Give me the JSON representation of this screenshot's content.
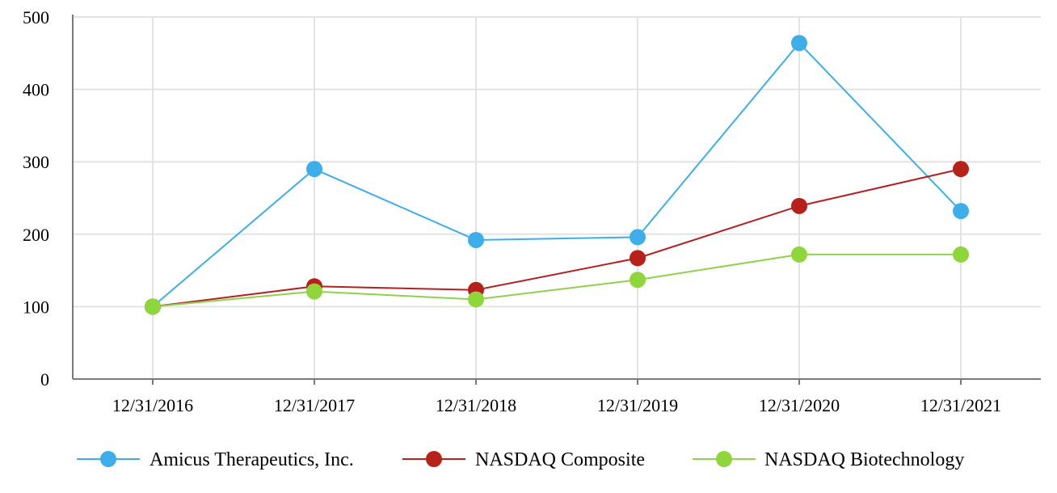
{
  "chart_data": {
    "type": "line",
    "title": "",
    "xlabel": "",
    "ylabel": "",
    "categories": [
      "12/31/2016",
      "12/31/2017",
      "12/31/2018",
      "12/31/2019",
      "12/31/2020",
      "12/31/2021"
    ],
    "ylim": [
      0,
      500
    ],
    "yticks": [
      0,
      100,
      200,
      300,
      400,
      500
    ],
    "grid": true,
    "legend_position": "bottom",
    "series": [
      {
        "name": "Amicus Therapeutics, Inc.",
        "color": "#3daee9",
        "marker_color": "#3daee9",
        "values": [
          100,
          290,
          192,
          196,
          464,
          232
        ]
      },
      {
        "name": "NASDAQ Composite",
        "color": "#b22222",
        "marker_color": "#b8201a",
        "values": [
          100,
          128,
          123,
          167,
          239,
          290
        ]
      },
      {
        "name": "NASDAQ Biotechnology",
        "color": "#8fd14f",
        "marker_color": "#8fd63a",
        "values": [
          100,
          121,
          110,
          137,
          172,
          172
        ]
      }
    ]
  }
}
